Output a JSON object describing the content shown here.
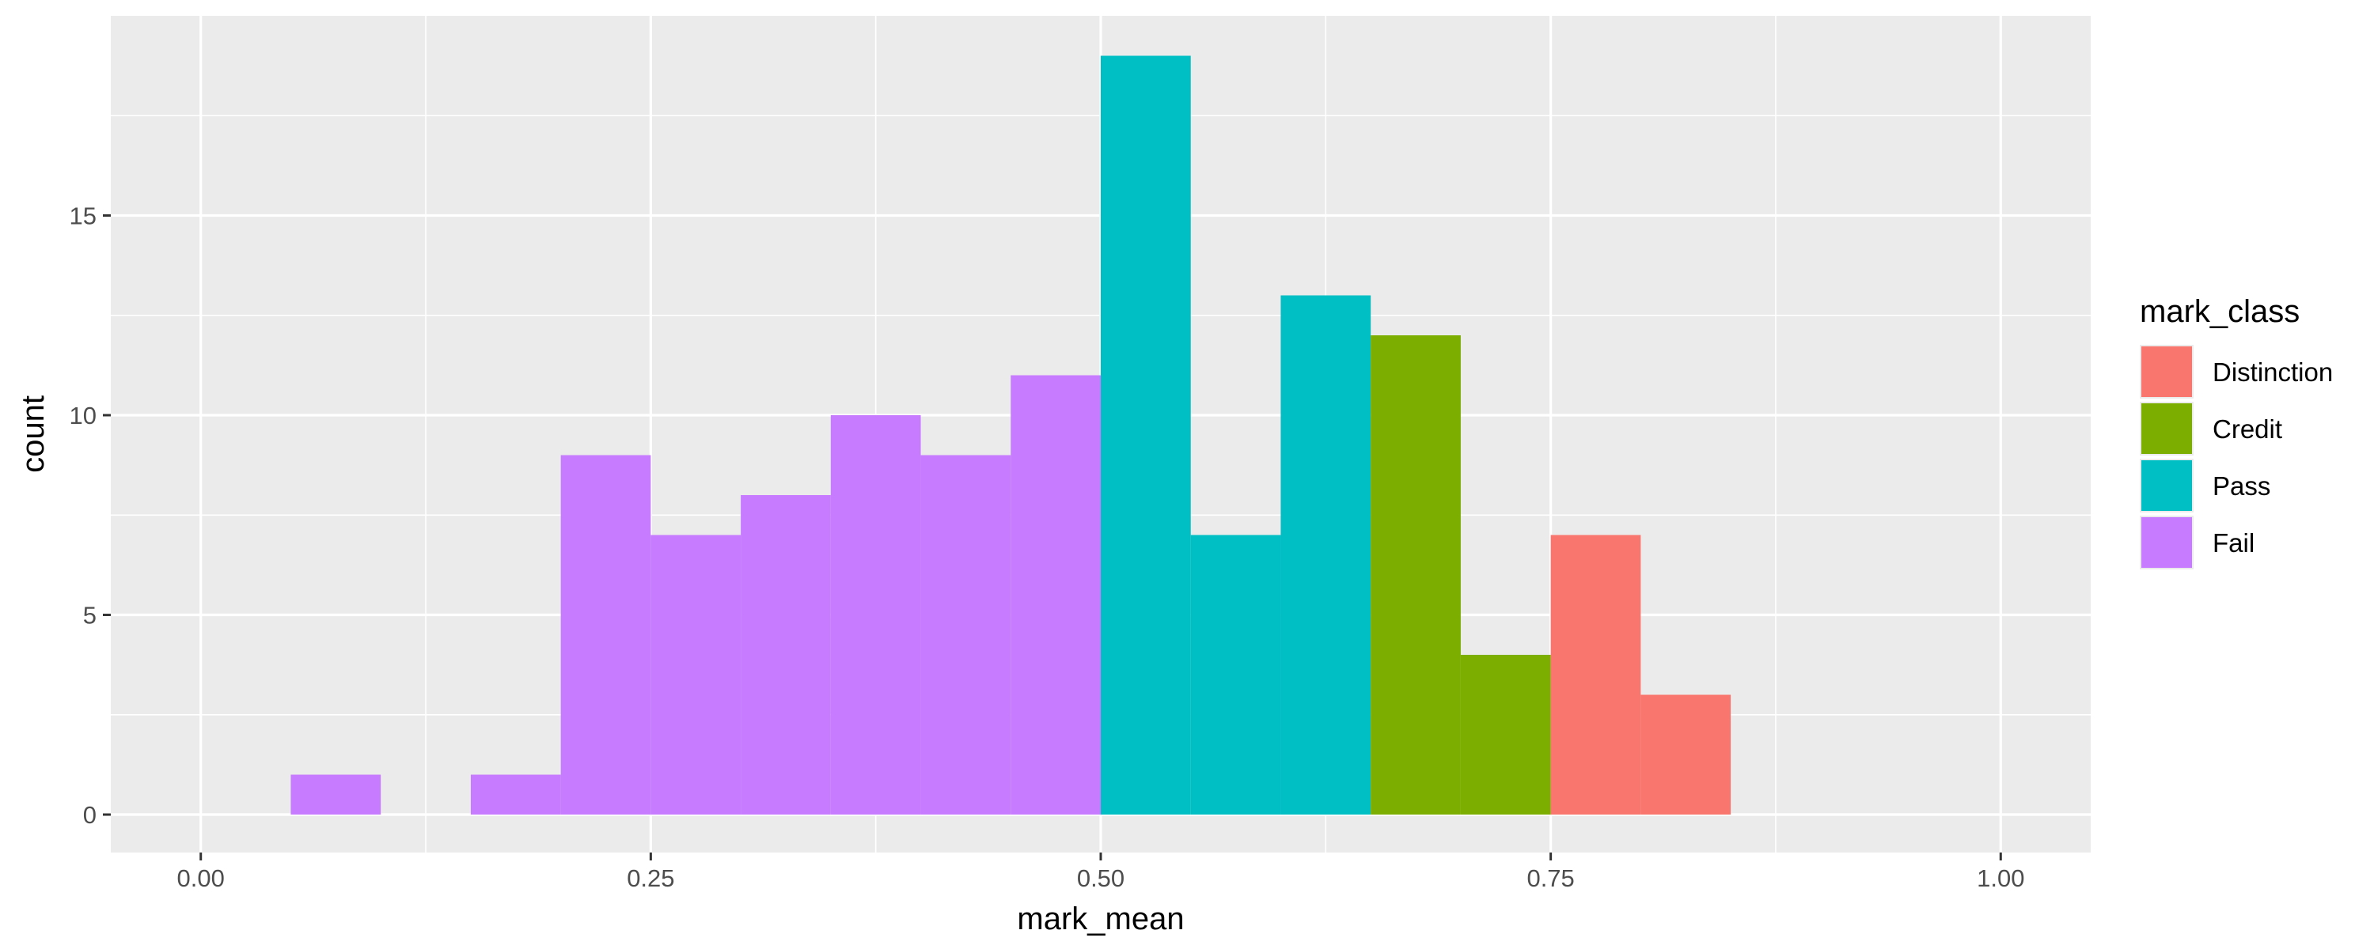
{
  "chart_data": {
    "type": "bar",
    "subtype": "stacked-histogram",
    "title": "",
    "xlabel": "mark_mean",
    "ylabel": "count",
    "xlim": [
      -0.05,
      1.05
    ],
    "ylim": [
      -0.95,
      20
    ],
    "x_ticks": [
      {
        "value": 0.0,
        "label": "0.00"
      },
      {
        "value": 0.25,
        "label": "0.25"
      },
      {
        "value": 0.5,
        "label": "0.50"
      },
      {
        "value": 0.75,
        "label": "0.75"
      },
      {
        "value": 1.0,
        "label": "1.00"
      }
    ],
    "y_ticks": [
      {
        "value": 0,
        "label": "0"
      },
      {
        "value": 5,
        "label": "5"
      },
      {
        "value": 10,
        "label": "10"
      },
      {
        "value": 15,
        "label": "15"
      }
    ],
    "grid": true,
    "legend": {
      "title": "mark_class",
      "position": "right",
      "entries": [
        {
          "name": "Distinction",
          "color": "#F8766D"
        },
        {
          "name": "Credit",
          "color": "#7CAE00"
        },
        {
          "name": "Pass",
          "color": "#00BFC4"
        },
        {
          "name": "Fail",
          "color": "#C77CFF"
        }
      ]
    },
    "bin_width": 0.05,
    "series": [
      {
        "name": "Fail",
        "color": "#C77CFF",
        "bins": [
          {
            "x0": 0.05,
            "x1": 0.1,
            "count": 1
          },
          {
            "x0": 0.15,
            "x1": 0.2,
            "count": 1
          },
          {
            "x0": 0.2,
            "x1": 0.25,
            "count": 9
          },
          {
            "x0": 0.25,
            "x1": 0.3,
            "count": 7
          },
          {
            "x0": 0.3,
            "x1": 0.35,
            "count": 8
          },
          {
            "x0": 0.35,
            "x1": 0.4,
            "count": 10
          },
          {
            "x0": 0.4,
            "x1": 0.45,
            "count": 9
          },
          {
            "x0": 0.45,
            "x1": 0.5,
            "count": 11
          }
        ]
      },
      {
        "name": "Pass",
        "color": "#00BFC4",
        "bins": [
          {
            "x0": 0.5,
            "x1": 0.55,
            "count": 19
          },
          {
            "x0": 0.55,
            "x1": 0.6,
            "count": 7
          },
          {
            "x0": 0.6,
            "x1": 0.65,
            "count": 13
          }
        ]
      },
      {
        "name": "Credit",
        "color": "#7CAE00",
        "bins": [
          {
            "x0": 0.65,
            "x1": 0.7,
            "count": 12
          },
          {
            "x0": 0.7,
            "x1": 0.75,
            "count": 4
          }
        ]
      },
      {
        "name": "Distinction",
        "color": "#F8766D",
        "bins": [
          {
            "x0": 0.75,
            "x1": 0.8,
            "count": 7
          },
          {
            "x0": 0.8,
            "x1": 0.85,
            "count": 3
          }
        ]
      }
    ],
    "colors": {
      "panel_background": "#EBEBEB",
      "grid_major": "#FFFFFF",
      "tick_text": "#4D4D4D",
      "axis_ticks": "#333333"
    }
  }
}
